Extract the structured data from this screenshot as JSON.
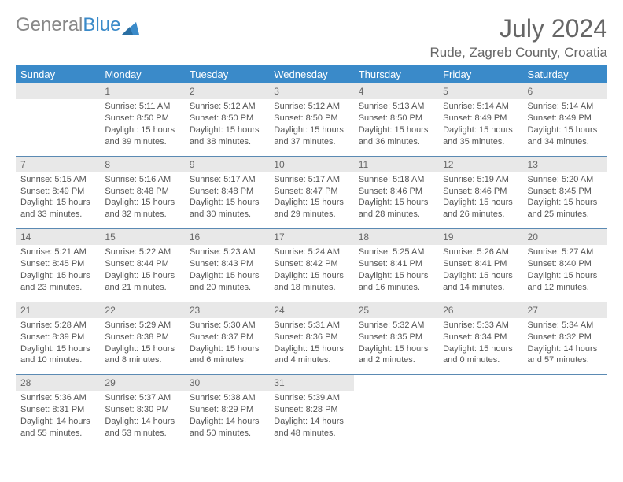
{
  "logo": {
    "text_gray": "General",
    "text_blue": "Blue"
  },
  "title": "July 2024",
  "location": "Rude, Zagreb County, Croatia",
  "colors": {
    "header_bg": "#3a8ac9",
    "day_num_bg": "#e8e8e8",
    "rule": "#5b8ab3",
    "text": "#555555",
    "title_text": "#666666"
  },
  "weekdays": [
    "Sunday",
    "Monday",
    "Tuesday",
    "Wednesday",
    "Thursday",
    "Friday",
    "Saturday"
  ],
  "weeks": [
    [
      {
        "blank": true
      },
      {
        "n": "1",
        "sr": "Sunrise: 5:11 AM",
        "ss": "Sunset: 8:50 PM",
        "dl": "Daylight: 15 hours and 39 minutes."
      },
      {
        "n": "2",
        "sr": "Sunrise: 5:12 AM",
        "ss": "Sunset: 8:50 PM",
        "dl": "Daylight: 15 hours and 38 minutes."
      },
      {
        "n": "3",
        "sr": "Sunrise: 5:12 AM",
        "ss": "Sunset: 8:50 PM",
        "dl": "Daylight: 15 hours and 37 minutes."
      },
      {
        "n": "4",
        "sr": "Sunrise: 5:13 AM",
        "ss": "Sunset: 8:50 PM",
        "dl": "Daylight: 15 hours and 36 minutes."
      },
      {
        "n": "5",
        "sr": "Sunrise: 5:14 AM",
        "ss": "Sunset: 8:49 PM",
        "dl": "Daylight: 15 hours and 35 minutes."
      },
      {
        "n": "6",
        "sr": "Sunrise: 5:14 AM",
        "ss": "Sunset: 8:49 PM",
        "dl": "Daylight: 15 hours and 34 minutes."
      }
    ],
    [
      {
        "n": "7",
        "sr": "Sunrise: 5:15 AM",
        "ss": "Sunset: 8:49 PM",
        "dl": "Daylight: 15 hours and 33 minutes."
      },
      {
        "n": "8",
        "sr": "Sunrise: 5:16 AM",
        "ss": "Sunset: 8:48 PM",
        "dl": "Daylight: 15 hours and 32 minutes."
      },
      {
        "n": "9",
        "sr": "Sunrise: 5:17 AM",
        "ss": "Sunset: 8:48 PM",
        "dl": "Daylight: 15 hours and 30 minutes."
      },
      {
        "n": "10",
        "sr": "Sunrise: 5:17 AM",
        "ss": "Sunset: 8:47 PM",
        "dl": "Daylight: 15 hours and 29 minutes."
      },
      {
        "n": "11",
        "sr": "Sunrise: 5:18 AM",
        "ss": "Sunset: 8:46 PM",
        "dl": "Daylight: 15 hours and 28 minutes."
      },
      {
        "n": "12",
        "sr": "Sunrise: 5:19 AM",
        "ss": "Sunset: 8:46 PM",
        "dl": "Daylight: 15 hours and 26 minutes."
      },
      {
        "n": "13",
        "sr": "Sunrise: 5:20 AM",
        "ss": "Sunset: 8:45 PM",
        "dl": "Daylight: 15 hours and 25 minutes."
      }
    ],
    [
      {
        "n": "14",
        "sr": "Sunrise: 5:21 AM",
        "ss": "Sunset: 8:45 PM",
        "dl": "Daylight: 15 hours and 23 minutes."
      },
      {
        "n": "15",
        "sr": "Sunrise: 5:22 AM",
        "ss": "Sunset: 8:44 PM",
        "dl": "Daylight: 15 hours and 21 minutes."
      },
      {
        "n": "16",
        "sr": "Sunrise: 5:23 AM",
        "ss": "Sunset: 8:43 PM",
        "dl": "Daylight: 15 hours and 20 minutes."
      },
      {
        "n": "17",
        "sr": "Sunrise: 5:24 AM",
        "ss": "Sunset: 8:42 PM",
        "dl": "Daylight: 15 hours and 18 minutes."
      },
      {
        "n": "18",
        "sr": "Sunrise: 5:25 AM",
        "ss": "Sunset: 8:41 PM",
        "dl": "Daylight: 15 hours and 16 minutes."
      },
      {
        "n": "19",
        "sr": "Sunrise: 5:26 AM",
        "ss": "Sunset: 8:41 PM",
        "dl": "Daylight: 15 hours and 14 minutes."
      },
      {
        "n": "20",
        "sr": "Sunrise: 5:27 AM",
        "ss": "Sunset: 8:40 PM",
        "dl": "Daylight: 15 hours and 12 minutes."
      }
    ],
    [
      {
        "n": "21",
        "sr": "Sunrise: 5:28 AM",
        "ss": "Sunset: 8:39 PM",
        "dl": "Daylight: 15 hours and 10 minutes."
      },
      {
        "n": "22",
        "sr": "Sunrise: 5:29 AM",
        "ss": "Sunset: 8:38 PM",
        "dl": "Daylight: 15 hours and 8 minutes."
      },
      {
        "n": "23",
        "sr": "Sunrise: 5:30 AM",
        "ss": "Sunset: 8:37 PM",
        "dl": "Daylight: 15 hours and 6 minutes."
      },
      {
        "n": "24",
        "sr": "Sunrise: 5:31 AM",
        "ss": "Sunset: 8:36 PM",
        "dl": "Daylight: 15 hours and 4 minutes."
      },
      {
        "n": "25",
        "sr": "Sunrise: 5:32 AM",
        "ss": "Sunset: 8:35 PM",
        "dl": "Daylight: 15 hours and 2 minutes."
      },
      {
        "n": "26",
        "sr": "Sunrise: 5:33 AM",
        "ss": "Sunset: 8:34 PM",
        "dl": "Daylight: 15 hours and 0 minutes."
      },
      {
        "n": "27",
        "sr": "Sunrise: 5:34 AM",
        "ss": "Sunset: 8:32 PM",
        "dl": "Daylight: 14 hours and 57 minutes."
      }
    ],
    [
      {
        "n": "28",
        "sr": "Sunrise: 5:36 AM",
        "ss": "Sunset: 8:31 PM",
        "dl": "Daylight: 14 hours and 55 minutes."
      },
      {
        "n": "29",
        "sr": "Sunrise: 5:37 AM",
        "ss": "Sunset: 8:30 PM",
        "dl": "Daylight: 14 hours and 53 minutes."
      },
      {
        "n": "30",
        "sr": "Sunrise: 5:38 AM",
        "ss": "Sunset: 8:29 PM",
        "dl": "Daylight: 14 hours and 50 minutes."
      },
      {
        "n": "31",
        "sr": "Sunrise: 5:39 AM",
        "ss": "Sunset: 8:28 PM",
        "dl": "Daylight: 14 hours and 48 minutes."
      },
      {
        "blank": true
      },
      {
        "blank": true
      },
      {
        "blank": true
      }
    ]
  ]
}
